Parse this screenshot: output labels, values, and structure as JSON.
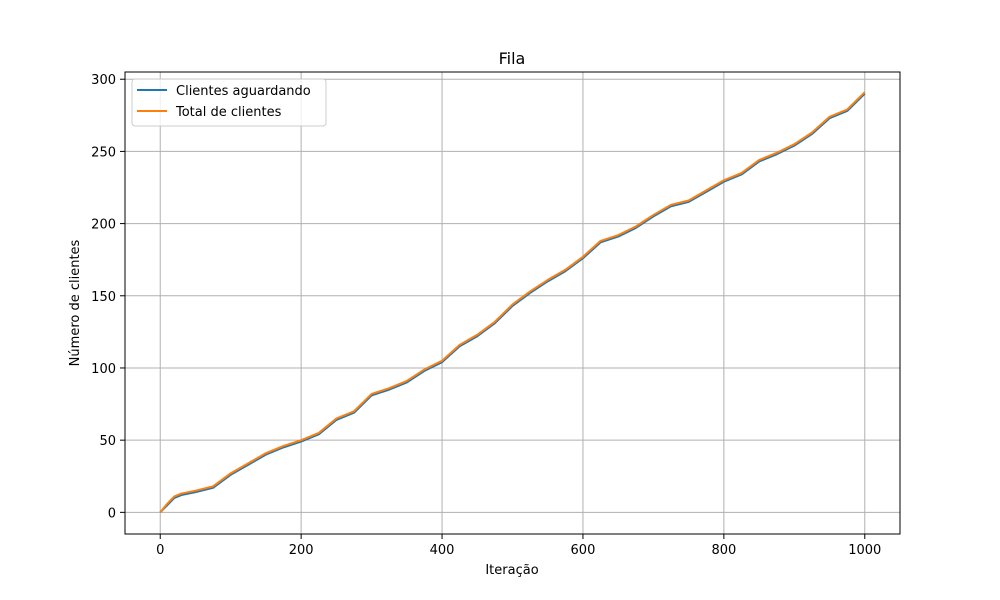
{
  "chart_data": {
    "type": "line",
    "title": "Fila",
    "xlabel": "Iteração",
    "ylabel": "Número de clientes",
    "xlim": [
      -50,
      1050
    ],
    "ylim": [
      -15,
      305
    ],
    "xticks": [
      0,
      200,
      400,
      600,
      800,
      1000
    ],
    "yticks": [
      0,
      50,
      100,
      150,
      200,
      250,
      300
    ],
    "grid": true,
    "legend_position": "top-left",
    "series": [
      {
        "name": "Clientes aguardando",
        "color": "#1f77b4",
        "points": [
          [
            0,
            0
          ],
          [
            10,
            5
          ],
          [
            20,
            10
          ],
          [
            30,
            12
          ],
          [
            50,
            14
          ],
          [
            75,
            17
          ],
          [
            100,
            26
          ],
          [
            125,
            33
          ],
          [
            150,
            40
          ],
          [
            175,
            45
          ],
          [
            200,
            49
          ],
          [
            225,
            54
          ],
          [
            250,
            64
          ],
          [
            275,
            69
          ],
          [
            300,
            81
          ],
          [
            325,
            85
          ],
          [
            350,
            90
          ],
          [
            375,
            98
          ],
          [
            400,
            104
          ],
          [
            425,
            115
          ],
          [
            450,
            122
          ],
          [
            475,
            131
          ],
          [
            500,
            143
          ],
          [
            525,
            152
          ],
          [
            550,
            160
          ],
          [
            575,
            167
          ],
          [
            600,
            176
          ],
          [
            625,
            187
          ],
          [
            650,
            191
          ],
          [
            675,
            197
          ],
          [
            700,
            205
          ],
          [
            725,
            212
          ],
          [
            750,
            215
          ],
          [
            775,
            222
          ],
          [
            800,
            229
          ],
          [
            825,
            234
          ],
          [
            850,
            243
          ],
          [
            875,
            248
          ],
          [
            900,
            254
          ],
          [
            925,
            262
          ],
          [
            950,
            273
          ],
          [
            975,
            278
          ],
          [
            1000,
            290
          ]
        ]
      },
      {
        "name": "Total de clientes",
        "color": "#ff7f0e",
        "points": [
          [
            0,
            0
          ],
          [
            10,
            6
          ],
          [
            20,
            11
          ],
          [
            30,
            13
          ],
          [
            50,
            15
          ],
          [
            75,
            18
          ],
          [
            100,
            27
          ],
          [
            125,
            34
          ],
          [
            150,
            41
          ],
          [
            175,
            46
          ],
          [
            200,
            50
          ],
          [
            225,
            55
          ],
          [
            250,
            65
          ],
          [
            275,
            70
          ],
          [
            300,
            82
          ],
          [
            325,
            86
          ],
          [
            350,
            91
          ],
          [
            375,
            99
          ],
          [
            400,
            105
          ],
          [
            425,
            116
          ],
          [
            450,
            123
          ],
          [
            475,
            132
          ],
          [
            500,
            144
          ],
          [
            525,
            153
          ],
          [
            550,
            161
          ],
          [
            575,
            168
          ],
          [
            600,
            177
          ],
          [
            625,
            188
          ],
          [
            650,
            192
          ],
          [
            675,
            198
          ],
          [
            700,
            206
          ],
          [
            725,
            213
          ],
          [
            750,
            216
          ],
          [
            775,
            223
          ],
          [
            800,
            230
          ],
          [
            825,
            235
          ],
          [
            850,
            244
          ],
          [
            875,
            249
          ],
          [
            900,
            255
          ],
          [
            925,
            263
          ],
          [
            950,
            274
          ],
          [
            975,
            279
          ],
          [
            1000,
            291
          ]
        ]
      }
    ]
  }
}
